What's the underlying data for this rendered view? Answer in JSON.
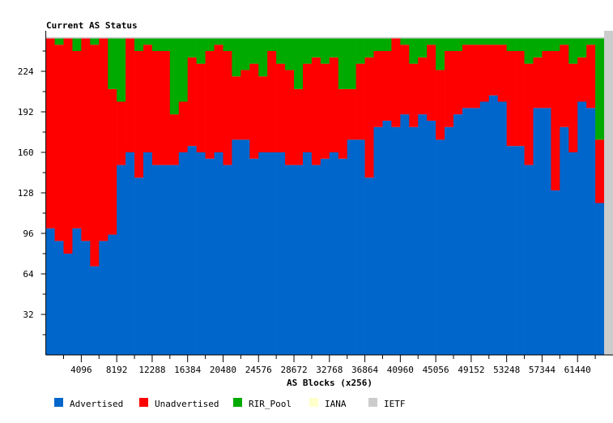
{
  "chart_data": {
    "type": "bar",
    "stacked": true,
    "title": "Current AS Status",
    "xlabel": "AS Blocks (x256)",
    "ylabel": "",
    "xlim": [
      0,
      65536
    ],
    "ylim": [
      0,
      256
    ],
    "bin_width": 1024,
    "x_ticks": [
      4096,
      8192,
      12288,
      16384,
      20480,
      24576,
      28672,
      32768,
      36864,
      40960,
      45056,
      49152,
      53248,
      57344,
      61440
    ],
    "y_ticks": [
      32,
      64,
      96,
      128,
      160,
      192,
      224
    ],
    "grid": false,
    "legend_position": "bottom",
    "series": [
      {
        "name": "Advertised",
        "color": "#0066cc",
        "values": [
          100,
          90,
          80,
          100,
          90,
          70,
          90,
          95,
          150,
          160,
          140,
          160,
          150,
          150,
          150,
          160,
          165,
          160,
          155,
          160,
          150,
          170,
          170,
          155,
          160,
          160,
          160,
          150,
          150,
          160,
          150,
          155,
          160,
          155,
          170,
          170,
          140,
          180,
          185,
          180,
          190,
          180,
          190,
          185,
          170,
          180,
          190,
          195,
          195,
          200,
          205,
          200,
          165,
          165,
          150,
          195,
          195,
          130,
          180,
          160,
          200,
          195,
          120,
          0
        ]
      },
      {
        "name": "Unadvertised",
        "color": "#ff0000",
        "values": [
          150,
          155,
          170,
          140,
          160,
          175,
          160,
          115,
          50,
          90,
          100,
          85,
          90,
          90,
          40,
          40,
          70,
          70,
          85,
          85,
          90,
          50,
          55,
          75,
          60,
          80,
          70,
          75,
          60,
          70,
          85,
          75,
          75,
          55,
          40,
          60,
          95,
          60,
          55,
          70,
          55,
          50,
          45,
          60,
          55,
          60,
          50,
          50,
          50,
          45,
          40,
          45,
          75,
          75,
          80,
          40,
          45,
          110,
          65,
          70,
          35,
          50,
          50,
          0
        ]
      },
      {
        "name": "RIR_Pool",
        "color": "#00aa00",
        "values": [
          0,
          5,
          0,
          10,
          0,
          5,
          0,
          40,
          50,
          0,
          10,
          5,
          10,
          10,
          60,
          50,
          15,
          20,
          10,
          5,
          10,
          30,
          25,
          20,
          30,
          10,
          20,
          25,
          40,
          20,
          15,
          20,
          15,
          40,
          40,
          20,
          15,
          10,
          10,
          0,
          5,
          20,
          15,
          5,
          25,
          10,
          10,
          5,
          5,
          5,
          5,
          5,
          10,
          10,
          20,
          15,
          10,
          10,
          5,
          20,
          15,
          5,
          80,
          0
        ]
      },
      {
        "name": "IANA",
        "color": "#ffffcc",
        "values": [
          0,
          0,
          0,
          0,
          0,
          0,
          0,
          0,
          0,
          0,
          0,
          0,
          0,
          0,
          0,
          0,
          0,
          0,
          0,
          0,
          0,
          0,
          0,
          0,
          0,
          0,
          0,
          0,
          0,
          0,
          0,
          0,
          0,
          0,
          0,
          0,
          0,
          0,
          0,
          0,
          0,
          0,
          0,
          0,
          0,
          0,
          0,
          0,
          0,
          0,
          0,
          0,
          0,
          0,
          0,
          0,
          0,
          0,
          0,
          0,
          0,
          0,
          0,
          0
        ]
      },
      {
        "name": "IETF",
        "color": "#cccccc",
        "values": [
          1,
          1,
          1,
          1,
          1,
          1,
          1,
          1,
          1,
          1,
          1,
          1,
          1,
          1,
          1,
          1,
          1,
          1,
          1,
          1,
          1,
          1,
          1,
          1,
          1,
          1,
          1,
          1,
          1,
          1,
          1,
          1,
          1,
          1,
          1,
          1,
          1,
          1,
          1,
          1,
          1,
          1,
          1,
          1,
          1,
          1,
          1,
          1,
          1,
          1,
          1,
          1,
          1,
          1,
          1,
          1,
          1,
          1,
          1,
          1,
          1,
          1,
          1,
          256
        ]
      }
    ]
  }
}
